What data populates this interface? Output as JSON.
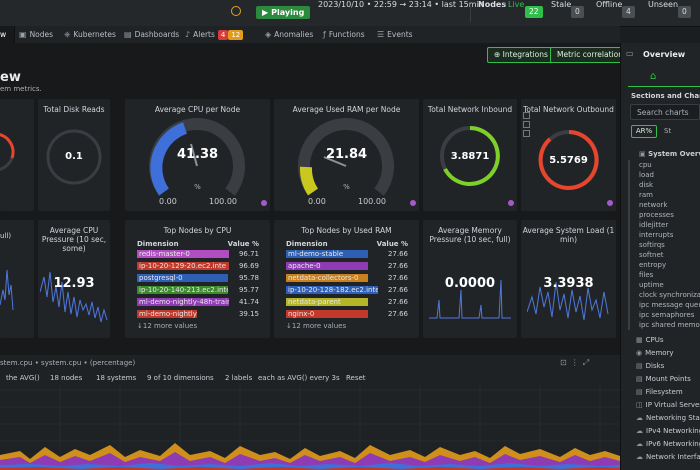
{
  "topbar": {
    "playing_label": "Playing",
    "time_range": "2023/10/10 • 22:59 → 23:14 • last 15min",
    "nodes_label": "Nodes",
    "live_label": "Live",
    "live_count": "22",
    "stale_label": "Stale",
    "stale_count": "0",
    "offline_label": "Offline",
    "offline_count": "4",
    "unseen_label": "Unseen",
    "unseen_count": "0"
  },
  "tabs": [
    {
      "label": "w",
      "icon": ""
    },
    {
      "label": "Nodes",
      "icon": "nodes-icon"
    },
    {
      "label": "Kubernetes",
      "icon": "kubernetes-icon"
    },
    {
      "label": "Dashboards",
      "icon": "dashboards-icon"
    },
    {
      "label": "Alerts",
      "icon": "bell-icon"
    },
    {
      "label": "Anomalies",
      "icon": "anomalies-icon"
    },
    {
      "label": "Functions",
      "icon": "functions-icon"
    },
    {
      "label": "Events",
      "icon": "events-icon"
    }
  ],
  "alerts": {
    "critical": "4",
    "warning": "12"
  },
  "overview": {
    "title": "ew",
    "subtitle": "em metrics."
  },
  "buttons": {
    "integrations": "Integrations",
    "metric_correlations": "Metric correlations"
  },
  "cards": {
    "disk_reads": {
      "title": "Total Disk Reads",
      "value": "0.1"
    },
    "cpu": {
      "title": "Average CPU per Node",
      "value": "41.38",
      "unit": "%",
      "min": "0.00",
      "max": "100.00"
    },
    "ram": {
      "title": "Average Used RAM per Node",
      "value": "21.84",
      "unit": "%",
      "min": "0.00",
      "max": "100.00"
    },
    "net_in": {
      "title": "Total Network Inbound",
      "value": "3.8871"
    },
    "net_out": {
      "title": "Total Network Outbound",
      "value": "5.5769"
    },
    "partial_left": {
      "text": "ull)"
    },
    "cpu_pressure": {
      "title": "Average CPU Pressure (10 sec, some)",
      "value": "12.93"
    },
    "mem_pressure": {
      "title": "Average Memory Pressure (10 sec, full)",
      "value": "0.0000"
    },
    "sys_load": {
      "title": "Average System Load (1 min)",
      "value": "3.3938"
    }
  },
  "top_cpu": {
    "title": "Top Nodes by CPU",
    "col_dimension": "Dimension",
    "col_value": "Value %",
    "rows": [
      {
        "name": "redis-master-0",
        "value": "96.71",
        "color": "#b04dc0"
      },
      {
        "name": "ip-10-20-129-20.ec2.inte",
        "value": "96.69",
        "color": "#c0392b"
      },
      {
        "name": "postgresql-0",
        "value": "95.78",
        "color": "#2f5fb5"
      },
      {
        "name": "ip-10-20-140-213.ec2.inte",
        "value": "95.77",
        "color": "#3d8a2e"
      },
      {
        "name": "ml-demo-nightly-48h-traini",
        "value": "41.74",
        "color": "#8e3bb4"
      },
      {
        "name": "ml-demo-nightly",
        "value": "39.15",
        "color": "#c0392b"
      }
    ],
    "more": "↓12 more values"
  },
  "top_ram": {
    "title": "Top Nodes by Used RAM",
    "col_dimension": "Dimension",
    "col_value": "Value %",
    "rows": [
      {
        "name": "ml-demo-stable",
        "value": "27.66",
        "color": "#2f5fb5"
      },
      {
        "name": "apache-0",
        "value": "27.66",
        "color": "#8e3bb4"
      },
      {
        "name": "netdata-collectors-0",
        "value": "27.66",
        "color": "#c87f1e"
      },
      {
        "name": "ip-10-20-128-182.ec2.inte",
        "value": "27.66",
        "color": "#2f5fb5"
      },
      {
        "name": "netdata-parent",
        "value": "27.66",
        "color": "#b5b52a"
      },
      {
        "name": "nginx-0",
        "value": "27.66",
        "color": "#c0392b"
      }
    ],
    "more": "↓12 more values"
  },
  "bottom": {
    "title": "stem.cpu • system.cpu • (percentage)",
    "controls": [
      "the AVG()",
      "18 nodes",
      "18 systems",
      "9 of 10 dimensions",
      "2 labels",
      "each as AVG() every 3s",
      "Reset"
    ]
  },
  "right_panel": {
    "title": "Overview",
    "sections_title": "Sections and Charts",
    "search_placeholder": "Search charts",
    "toggle_ar": "AR%",
    "toggle_st": "St",
    "system_overview": "System Overview",
    "links": [
      "cpu",
      "load",
      "disk",
      "ram",
      "network",
      "processes",
      "idlejitter",
      "interrupts",
      "softirqs",
      "softnet",
      "entropy",
      "files",
      "uptime",
      "clock synchronization",
      "ipc message queues",
      "ipc semaphores",
      "ipc shared memory"
    ],
    "sections": [
      {
        "label": "CPUs",
        "icon": "cpu-icon"
      },
      {
        "label": "Memory",
        "icon": "memory-icon"
      },
      {
        "label": "Disks",
        "icon": "disk-icon"
      },
      {
        "label": "Mount Points",
        "icon": "mount-icon"
      },
      {
        "label": "Filesystem",
        "icon": "filesystem-icon"
      },
      {
        "label": "IP Virtual Server",
        "icon": "ip-icon"
      },
      {
        "label": "Networking Stack",
        "icon": "network-icon"
      },
      {
        "label": "IPv4 Networking",
        "icon": "ipv4-icon"
      },
      {
        "label": "IPv6 Networking",
        "icon": "ipv6-icon"
      },
      {
        "label": "Network Interfa",
        "icon": "interface-icon"
      }
    ]
  },
  "colors": {
    "accent": "#2fbf4a",
    "cpu_gauge": "#3f6fd8",
    "ram_gauge": "#c8c81e",
    "net_in_ring": "#7fcf2a",
    "net_out_ring": "#e8452c",
    "disk_ring": "#e8452c"
  }
}
